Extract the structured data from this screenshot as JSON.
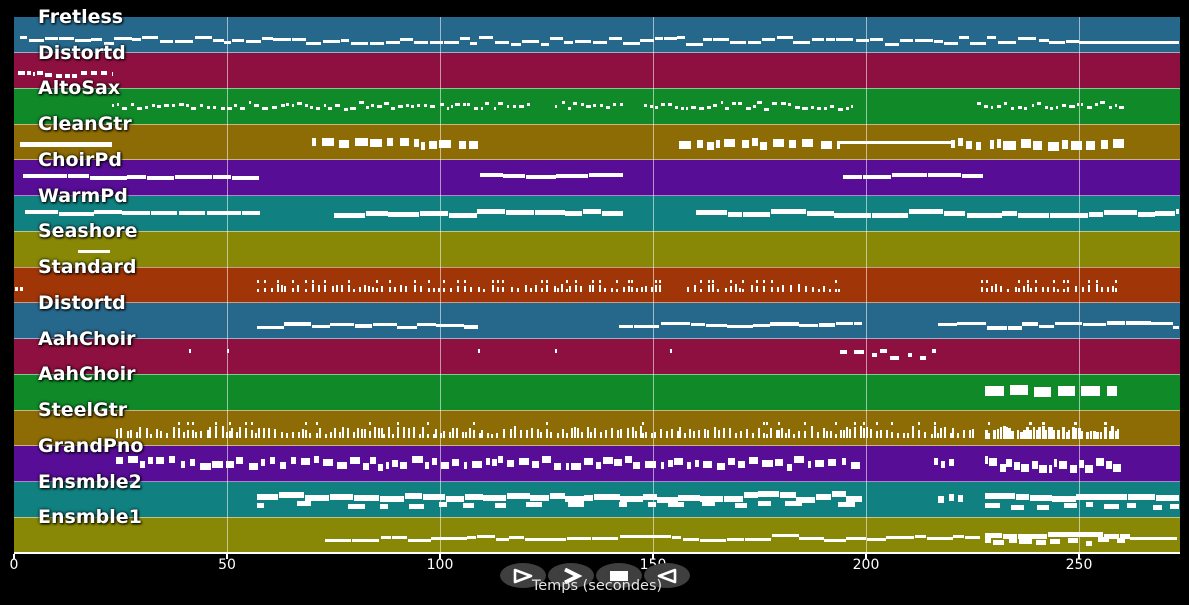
{
  "window": {
    "background": "#000000",
    "note_color": "#ffffff",
    "grid_color": "rgba(255,255,255,0.55)",
    "separator_color": "rgba(255,255,255,0.5)",
    "button_bg": "#3f3f3f",
    "text_color": "#ffffff"
  },
  "axis": {
    "label": "Temps (secondes)",
    "ticks": [
      0,
      50,
      100,
      150,
      200,
      250
    ],
    "t_max": 273.7
  },
  "controls": {
    "buttons": [
      {
        "name": "play",
        "icon": "play-triangle-outline-icon"
      },
      {
        "name": "fast-forward",
        "icon": "chevron-right-icon"
      },
      {
        "name": "stop",
        "icon": "stop-square-icon"
      },
      {
        "name": "rewind",
        "icon": "triangle-left-outline-icon"
      }
    ]
  },
  "chart_data": {
    "type": "timeline",
    "xlabel": "Temps (secondes)",
    "x_range": [
      0,
      274
    ],
    "x_ticks": [
      0,
      50,
      100,
      150,
      200,
      250
    ],
    "grid": "vertical-50s",
    "tracks": [
      {
        "label": "Fretless",
        "color": "#26688c",
        "runs": [
          {
            "type": "wavy",
            "t0": 1.5,
            "t1": 250,
            "pitch": 0.66,
            "amp": 0.1,
            "seg": 3,
            "gap": 0.5,
            "h": 3
          },
          {
            "type": "solid",
            "t0": 250,
            "t1": 273.5,
            "pitch": 0.7,
            "h": 3
          }
        ]
      },
      {
        "label": "Distortd",
        "color": "#8e1040",
        "runs": [
          {
            "type": "dashes",
            "t0": 1,
            "t1": 23,
            "pitch": 0.6,
            "seg": 1.1,
            "gap": 0.8,
            "h": 4,
            "jitter": 0.05
          }
        ]
      },
      {
        "label": "AltoSax",
        "color": "#108a28",
        "runs": [
          {
            "type": "dashes",
            "t0": 23,
            "t1": 122,
            "pitch": 0.49,
            "seg": 0.9,
            "gap": 0.7,
            "h": 3,
            "jitter": 0.09
          },
          {
            "type": "dashes",
            "t0": 127,
            "t1": 143,
            "pitch": 0.49,
            "seg": 0.9,
            "gap": 0.7,
            "h": 3,
            "jitter": 0.09
          },
          {
            "type": "dashes",
            "t0": 148,
            "t1": 197,
            "pitch": 0.49,
            "seg": 0.9,
            "gap": 0.7,
            "h": 3,
            "jitter": 0.09
          },
          {
            "type": "dashes",
            "t0": 226,
            "t1": 261,
            "pitch": 0.49,
            "seg": 0.9,
            "gap": 0.7,
            "h": 3,
            "jitter": 0.09
          }
        ]
      },
      {
        "label": "CleanGtr",
        "color": "#8e6c05",
        "runs": [
          {
            "type": "solid",
            "t0": 1.5,
            "t1": 23,
            "pitch": 0.57,
            "h": 5
          },
          {
            "type": "blocks",
            "t0": 70,
            "t1": 109,
            "pitch": 0.55,
            "h": 8,
            "wMin": 0.8,
            "wMax": 3,
            "gMin": 0.4,
            "gMax": 2,
            "jitter": 0.07
          },
          {
            "type": "blocks",
            "t0": 156,
            "t1": 194,
            "pitch": 0.55,
            "h": 8,
            "wMin": 0.8,
            "wMax": 3,
            "gMin": 0.4,
            "gMax": 2,
            "jitter": 0.07
          },
          {
            "type": "solid",
            "t0": 194,
            "t1": 220,
            "pitch": 0.5,
            "h": 3
          },
          {
            "type": "blocks",
            "t0": 220,
            "t1": 227,
            "pitch": 0.55,
            "h": 8,
            "wMin": 0.8,
            "wMax": 1.6,
            "gMin": 0.5,
            "gMax": 1.2,
            "jitter": 0.05
          },
          {
            "type": "blocks",
            "t0": 229,
            "t1": 261,
            "pitch": 0.55,
            "h": 9,
            "wMin": 1,
            "wMax": 3.2,
            "gMin": 0.4,
            "gMax": 1.6,
            "jitter": 0.07
          }
        ]
      },
      {
        "label": "ChoirPd",
        "color": "#580d96",
        "runs": [
          {
            "type": "wavy",
            "t0": 2,
            "t1": 57.5,
            "pitch": 0.48,
            "amp": 0.04,
            "seg": 8,
            "gap": 0.3,
            "h": 4
          },
          {
            "type": "wavy",
            "t0": 109.5,
            "t1": 143,
            "pitch": 0.45,
            "amp": 0.05,
            "seg": 6,
            "gap": 0.3,
            "h": 4
          },
          {
            "type": "wavy",
            "t0": 194.5,
            "t1": 227.5,
            "pitch": 0.45,
            "amp": 0.04,
            "seg": 6,
            "gap": 0.3,
            "h": 4
          }
        ]
      },
      {
        "label": "WarmPd",
        "color": "#118080",
        "runs": [
          {
            "type": "wavy",
            "t0": 2.6,
            "t1": 57.7,
            "pitch": 0.49,
            "amp": 0.05,
            "seg": 7,
            "gap": 0.4,
            "h": 4
          },
          {
            "type": "wavy",
            "t0": 75,
            "t1": 143,
            "pitch": 0.5,
            "amp": 0.07,
            "seg": 6,
            "gap": 0.3,
            "h": 5
          },
          {
            "type": "wavy",
            "t0": 160,
            "t1": 273.5,
            "pitch": 0.5,
            "amp": 0.08,
            "seg": 6,
            "gap": 0.3,
            "h": 5
          }
        ]
      },
      {
        "label": "Seashore",
        "color": "#888806",
        "runs": [
          {
            "type": "solid",
            "t0": 15,
            "t1": 22.5,
            "pitch": 0.56,
            "h": 3
          }
        ]
      },
      {
        "label": "Standard",
        "color": "#a03508",
        "runs": [
          {
            "type": "dots",
            "times": [
              0.3,
              1.4
            ],
            "pitch": 0.6,
            "w": 3,
            "h": 4
          },
          {
            "type": "ticks",
            "t0": 57,
            "t1": 152,
            "pitch": 0.7,
            "step": 1.4,
            "hMin": 3,
            "hMax": 8,
            "w": 2,
            "dual": 0.35
          },
          {
            "type": "ticks",
            "t0": 158,
            "t1": 194,
            "pitch": 0.7,
            "step": 1.4,
            "hMin": 3,
            "hMax": 8,
            "w": 2,
            "dual": 0.35
          },
          {
            "type": "ticks",
            "t0": 227,
            "t1": 259,
            "pitch": 0.7,
            "step": 1.3,
            "hMin": 3,
            "hMax": 8,
            "w": 2,
            "dual": 0.35
          }
        ]
      },
      {
        "label": "Distortd",
        "color": "#26688c",
        "runs": [
          {
            "type": "wavy",
            "t0": 57,
            "t1": 109,
            "pitch": 0.63,
            "amp": 0.07,
            "seg": 5,
            "gap": 0.3,
            "h": 3.5
          },
          {
            "type": "wavy",
            "t0": 142,
            "t1": 199,
            "pitch": 0.63,
            "amp": 0.07,
            "seg": 5,
            "gap": 0.3,
            "h": 3.5
          },
          {
            "type": "wavy",
            "t0": 217,
            "t1": 273.5,
            "pitch": 0.63,
            "amp": 0.07,
            "seg": 5,
            "gap": 0.3,
            "h": 3.5
          }
        ]
      },
      {
        "label": "AahChoir",
        "color": "#8e1040",
        "runs": [
          {
            "type": "dots",
            "times": [
              41,
              50,
              109,
              127,
              154
            ],
            "pitch": 0.36,
            "w": 2,
            "h": 4
          },
          {
            "type": "dashes",
            "t0": 194,
            "t1": 217,
            "pitch": 0.45,
            "seg": 1.7,
            "gap": 1.5,
            "h": 4,
            "jitter": 0.13
          }
        ]
      },
      {
        "label": "AahChoir",
        "color": "#108a28",
        "runs": [
          {
            "type": "blocks",
            "t0": 228,
            "t1": 259,
            "pitch": 0.47,
            "h": 10,
            "wMin": 3.5,
            "wMax": 5,
            "gMin": 1.2,
            "gMax": 1.8,
            "jitter": 0.02
          }
        ]
      },
      {
        "label": "SteelGtr",
        "color": "#8e6c05",
        "runs": [
          {
            "type": "ticks",
            "t0": 24,
            "t1": 225,
            "pitch": 0.78,
            "step": 1.1,
            "hMin": 4,
            "hMax": 12,
            "w": 2,
            "dual": 0.15
          },
          {
            "type": "ticks",
            "t0": 228,
            "t1": 259,
            "pitch": 0.8,
            "step": 0.85,
            "hMin": 6,
            "hMax": 13,
            "w": 2.5,
            "dual": 0.1
          }
        ]
      },
      {
        "label": "GrandPno",
        "color": "#580d96",
        "runs": [
          {
            "type": "blocks",
            "t0": 24,
            "t1": 199,
            "pitch": 0.49,
            "h": 7,
            "wMin": 0.7,
            "wMax": 2.6,
            "gMin": 0.2,
            "gMax": 1.3,
            "jitter": 0.12
          },
          {
            "type": "blocks",
            "t0": 216,
            "t1": 221.5,
            "pitch": 0.49,
            "h": 7,
            "wMin": 0.8,
            "wMax": 1.4,
            "gMin": 0.5,
            "gMax": 1,
            "jitter": 0.06
          },
          {
            "type": "blocks",
            "t0": 228,
            "t1": 260,
            "pitch": 0.53,
            "h": 8,
            "wMin": 0.6,
            "wMax": 2,
            "gMin": 0.2,
            "gMax": 0.8,
            "jitter": 0.13
          }
        ]
      },
      {
        "label": "Ensmble2",
        "color": "#118080",
        "runs": [
          {
            "type": "wavy",
            "t0": 57,
            "t1": 199,
            "pitch": 0.44,
            "amp": 0.08,
            "seg": 4,
            "gap": 0.3,
            "h": 6
          },
          {
            "type": "blocks",
            "t0": 57,
            "t1": 199,
            "pitch": 0.66,
            "h": 5,
            "wMin": 1.5,
            "wMax": 4,
            "gMin": 2.5,
            "gMax": 9,
            "jitter": 0.05
          },
          {
            "type": "blocks",
            "t0": 217,
            "t1": 224,
            "pitch": 0.47,
            "h": 7,
            "wMin": 0.9,
            "wMax": 1.4,
            "gMin": 0.8,
            "gMax": 1.6,
            "jitter": 0.04
          },
          {
            "type": "wavy",
            "t0": 228,
            "t1": 273.5,
            "pitch": 0.44,
            "amp": 0.05,
            "seg": 5,
            "gap": 0.2,
            "h": 6
          },
          {
            "type": "blocks",
            "t0": 228,
            "t1": 273.5,
            "pitch": 0.68,
            "h": 5,
            "wMin": 1.5,
            "wMax": 4,
            "gMin": 1,
            "gMax": 5,
            "jitter": 0.05
          }
        ]
      },
      {
        "label": "Ensmble1",
        "color": "#888806",
        "runs": [
          {
            "type": "wavy",
            "t0": 73,
            "t1": 227,
            "pitch": 0.58,
            "amp": 0.08,
            "seg": 4.5,
            "gap": 0.4,
            "h": 3
          },
          {
            "type": "wavy",
            "t0": 228,
            "t1": 262,
            "pitch": 0.5,
            "amp": 0.05,
            "seg": 5,
            "gap": 0.3,
            "h": 5
          },
          {
            "type": "blocks",
            "t0": 228,
            "t1": 262,
            "pitch": 0.68,
            "h": 5,
            "wMin": 1,
            "wMax": 3,
            "gMin": 0.5,
            "gMax": 2,
            "jitter": 0.05
          },
          {
            "type": "solid",
            "t0": 262,
            "t1": 273,
            "pitch": 0.6,
            "h": 3
          }
        ]
      }
    ]
  }
}
